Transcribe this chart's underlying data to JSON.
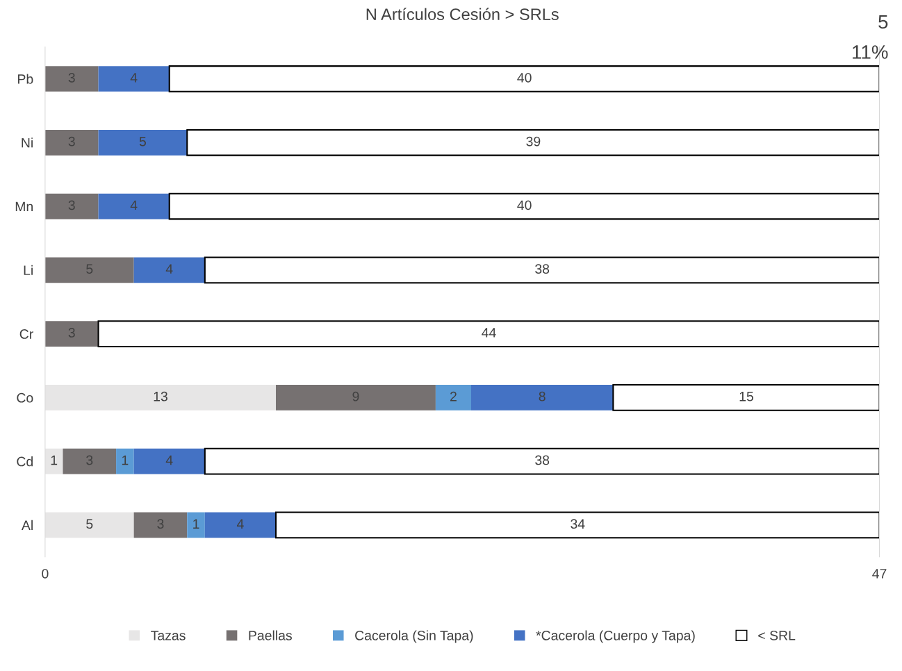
{
  "chart_data": {
    "type": "bar",
    "orientation": "horizontal",
    "stacked": true,
    "title": "N Artículos Cesión > SRLs",
    "categories": [
      "Pb",
      "Ni",
      "Mn",
      "Li",
      "Cr",
      "Co",
      "Cd",
      "Al"
    ],
    "series": [
      {
        "name": "Tazas",
        "color": "#e7e6e6",
        "values": [
          null,
          null,
          null,
          null,
          null,
          13,
          1,
          5
        ]
      },
      {
        "name": "Paellas",
        "color": "#767171",
        "values": [
          3,
          3,
          3,
          5,
          3,
          9,
          3,
          3
        ]
      },
      {
        "name": "Cacerola (Sin Tapa)",
        "color": "#5b9bd5",
        "values": [
          null,
          null,
          null,
          null,
          null,
          2,
          1,
          1
        ]
      },
      {
        "name": "*Cacerola (Cuerpo y Tapa)",
        "color": "#4472c4",
        "values": [
          4,
          5,
          4,
          4,
          null,
          8,
          4,
          4
        ]
      },
      {
        "name": "< SRL",
        "color": "#ffffff",
        "values": [
          40,
          39,
          40,
          38,
          44,
          15,
          38,
          34
        ]
      }
    ],
    "xlim": [
      0,
      47
    ],
    "xticks": [
      0,
      47
    ],
    "grid": false,
    "legend": "bottom",
    "data_labels": true,
    "annotations": [
      "5",
      "11%"
    ]
  }
}
